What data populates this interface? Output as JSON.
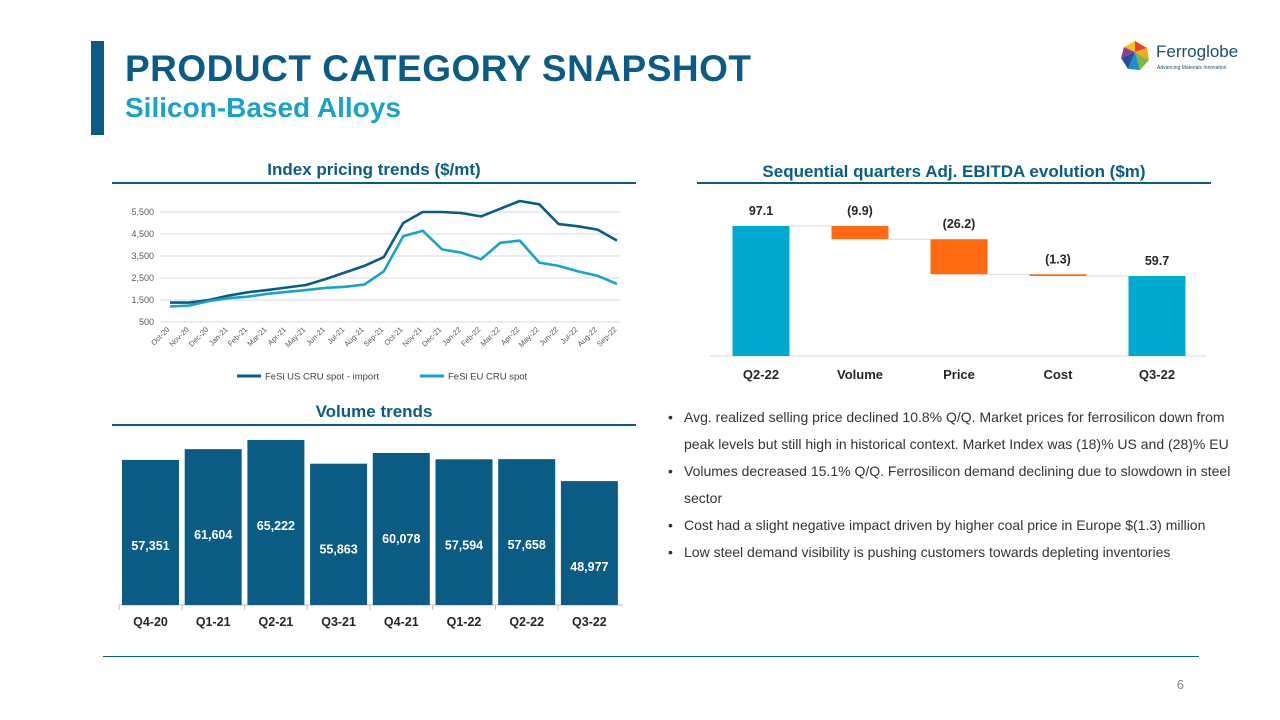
{
  "header": {
    "title": "PRODUCT CATEGORY SNAPSHOT",
    "subtitle": "Silicon-Based Alloys"
  },
  "logo": {
    "name": "Ferroglobe",
    "tagline": "Advancing Materials Innovation",
    "icon": "multicolor-globe-icon"
  },
  "colors": {
    "primary": "#0b5c84",
    "secondary": "#19a3c9",
    "waterfall_up": "#00a9ce",
    "waterfall_down": "#ff6a13"
  },
  "sections": {
    "index_title": "Index pricing trends ($/mt)",
    "ebitda_title": "Sequential quarters Adj. EBITDA evolution ($m)",
    "volume_title": "Volume trends"
  },
  "bullets": [
    "Avg. realized selling price declined 10.8% Q/Q. Market prices for ferrosilicon down from peak levels but still high in historical context.  Market Index was (18)% US and (28)% EU",
    "Volumes decreased 15.1% Q/Q. Ferrosilicon demand declining due to slowdown in steel sector",
    "Cost had a slight negative impact driven by higher coal price in Europe $(1.3) million",
    "Low steel demand visibility is pushing customers towards depleting inventories"
  ],
  "page_number": "6",
  "chart_data": [
    {
      "type": "line",
      "title": "Index pricing trends ($/mt)",
      "x": [
        "Oct-20",
        "Nov-20",
        "Dec-20",
        "Jan-21",
        "Feb-21",
        "Mar-21",
        "Apr-21",
        "May-21",
        "Jun-21",
        "Jul-21",
        "Aug-21",
        "Sep-21",
        "Oct-21",
        "Nov-21",
        "Dec-21",
        "Jan-22",
        "Feb-22",
        "Mar-22",
        "Apr-22",
        "May-22",
        "Jun-22",
        "Jul-22",
        "Aug-22",
        "Sep-22"
      ],
      "y_ticks": [
        "5,500",
        "4,500",
        "3,500",
        "2,500",
        "1,500",
        "500"
      ],
      "ylim": [
        500,
        5500
      ],
      "grid": true,
      "legend_position": "bottom",
      "series": [
        {
          "name": "FeSi US CRU spot - import",
          "color": "#0b5c84",
          "values": [
            1380,
            1380,
            1500,
            1700,
            1850,
            1950,
            2070,
            2180,
            2450,
            2750,
            3050,
            3450,
            5000,
            5500,
            5500,
            5450,
            5300,
            5650,
            6000,
            5850,
            4950,
            4850,
            4700,
            4200
          ]
        },
        {
          "name": "FeSi EU CRU spot",
          "color": "#19a3c9",
          "values": [
            1200,
            1250,
            1450,
            1580,
            1650,
            1780,
            1870,
            1950,
            2050,
            2100,
            2200,
            2800,
            4400,
            4650,
            3800,
            3650,
            3350,
            4100,
            4200,
            3200,
            3050,
            2800,
            2600,
            2230
          ]
        }
      ]
    },
    {
      "type": "bar",
      "subtype": "waterfall",
      "title": "Sequential quarters Adj. EBITDA evolution ($m)",
      "categories": [
        "Q2-22",
        "Volume",
        "Price",
        "Cost",
        "Q3-22"
      ],
      "values": [
        97.1,
        -9.9,
        -26.2,
        -1.3,
        59.7
      ],
      "labels": [
        "97.1",
        "(9.9)",
        "(26.2)",
        "(1.3)",
        "59.7"
      ],
      "kinds": [
        "total",
        "delta",
        "delta",
        "delta",
        "total"
      ]
    },
    {
      "type": "bar",
      "title": "Volume trends",
      "categories": [
        "Q4-20",
        "Q1-21",
        "Q2-21",
        "Q3-21",
        "Q4-21",
        "Q1-22",
        "Q2-22",
        "Q3-22"
      ],
      "values": [
        57351,
        61604,
        65222,
        55863,
        60078,
        57594,
        57658,
        48977
      ],
      "labels": [
        "57,351",
        "61,604",
        "65,222",
        "55,863",
        "60,078",
        "57,594",
        "57,658",
        "48,977"
      ]
    }
  ]
}
